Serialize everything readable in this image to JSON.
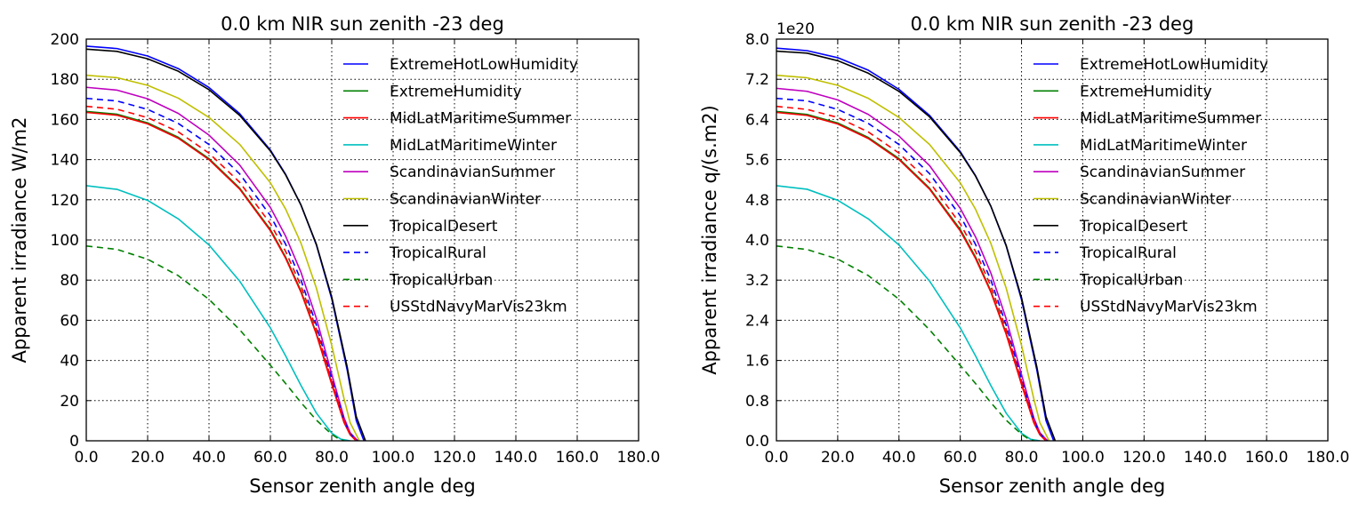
{
  "figure": {
    "panel_names": [
      "panel-irradiance",
      "panel-quanta"
    ]
  },
  "chart_data": [
    {
      "type": "line",
      "title": "0.0 km NIR sun zenith -23 deg",
      "xlabel": "Sensor zenith angle deg",
      "ylabel": "Apparent irradiance W/m2",
      "xlim": [
        0,
        180
      ],
      "ylim": [
        0,
        200
      ],
      "xticks": [
        "0.0",
        "20.0",
        "40.0",
        "60.0",
        "80.0",
        "100.0",
        "120.0",
        "140.0",
        "160.0",
        "180.0"
      ],
      "xtick_values": [
        0,
        20,
        40,
        60,
        80,
        100,
        120,
        140,
        160,
        180
      ],
      "yticks": [
        "0",
        "20",
        "40",
        "60",
        "80",
        "100",
        "120",
        "140",
        "160",
        "180",
        "200"
      ],
      "ytick_values": [
        0,
        20,
        40,
        60,
        80,
        100,
        120,
        140,
        160,
        180,
        200
      ],
      "offset_label": "",
      "grid": true,
      "legend_position": "upper right",
      "series": [
        {
          "name": "ExtremeHotLowHumidity",
          "color": "#0000ff",
          "dash": "solid",
          "y0": 196.5,
          "xend": 90.5,
          "x": [
            0,
            10,
            20,
            30,
            40,
            50,
            60,
            65,
            70,
            75,
            80,
            85,
            88,
            90.5
          ],
          "y": [
            196.5,
            195.3,
            191.6,
            185.3,
            175.9,
            162.9,
            144.8,
            132.6,
            117.3,
            97.5,
            70.7,
            35.5,
            10,
            0
          ]
        },
        {
          "name": "ExtremeHumidity",
          "color": "#008000",
          "dash": "solid",
          "y0": 164,
          "xend": 88,
          "x": [
            0,
            10,
            20,
            30,
            40,
            50,
            60,
            65,
            70,
            75,
            80,
            84,
            86,
            88
          ],
          "y": [
            164,
            162.6,
            158.3,
            151.1,
            140.5,
            125.8,
            105.2,
            91.4,
            74.5,
            53.5,
            28.5,
            9.3,
            3,
            0
          ]
        },
        {
          "name": "MidLatMaritimeSummer",
          "color": "#ff0000",
          "dash": "solid",
          "y0": 163.5,
          "xend": 88,
          "x": [
            0,
            10,
            20,
            30,
            40,
            50,
            60,
            65,
            70,
            75,
            80,
            84,
            86,
            88
          ],
          "y": [
            163.5,
            162.1,
            157.8,
            150.6,
            140,
            125.3,
            104.6,
            90.8,
            73.9,
            53,
            28.1,
            9.1,
            3,
            0
          ]
        },
        {
          "name": "MidLatMaritimeWinter",
          "color": "#00bfbf",
          "dash": "solid",
          "y0": 127,
          "xend": 86,
          "x": [
            0,
            10,
            20,
            30,
            40,
            50,
            60,
            65,
            70,
            75,
            80,
            83,
            86
          ],
          "y": [
            127,
            125.2,
            119.7,
            110.5,
            97.5,
            79.5,
            56.2,
            42.2,
            27.5,
            13.8,
            3.8,
            0.8,
            0
          ]
        },
        {
          "name": "ScandinavianSummer",
          "color": "#bf00bf",
          "dash": "solid",
          "y0": 176,
          "xend": 88.5,
          "x": [
            0,
            10,
            20,
            30,
            40,
            50,
            60,
            65,
            70,
            75,
            80,
            84,
            86,
            88.5
          ],
          "y": [
            176,
            174.6,
            170.3,
            163,
            152.2,
            137.3,
            116.2,
            101.8,
            83.8,
            60.9,
            33.2,
            11.5,
            4,
            0
          ]
        },
        {
          "name": "ScandinavianWinter",
          "color": "#bfbf00",
          "dash": "solid",
          "y0": 182,
          "xend": 89,
          "x": [
            0,
            10,
            20,
            30,
            40,
            50,
            60,
            65,
            70,
            75,
            80,
            84,
            86,
            89
          ],
          "y": [
            182,
            180.8,
            177,
            170.6,
            161,
            147.6,
            128.5,
            115.3,
            98.3,
            76,
            47.5,
            21,
            9,
            0
          ]
        },
        {
          "name": "TropicalDesert",
          "color": "#000000",
          "dash": "solid",
          "y0": 195,
          "xend": 91,
          "x": [
            0,
            10,
            20,
            30,
            40,
            50,
            60,
            65,
            70,
            75,
            80,
            85,
            88,
            91
          ],
          "y": [
            195,
            193.9,
            190.2,
            184,
            174.8,
            162,
            144.3,
            132.3,
            117.3,
            97.8,
            71.6,
            37,
            12,
            0
          ]
        },
        {
          "name": "TropicalRural",
          "color": "#0000ff",
          "dash": "dashed",
          "y0": 170.5,
          "xend": 88.5,
          "x": [
            0,
            10,
            20,
            30,
            40,
            50,
            60,
            65,
            70,
            75,
            80,
            84,
            86,
            88.5
          ],
          "y": [
            170.5,
            169.2,
            165,
            158,
            147.5,
            132.9,
            112.1,
            97.8,
            79.9,
            57.6,
            30.8,
            10.4,
            3.5,
            0
          ]
        },
        {
          "name": "TropicalUrban",
          "color": "#008000",
          "dash": "dashed",
          "y0": 97,
          "xend": 84,
          "x": [
            0,
            10,
            20,
            30,
            40,
            50,
            60,
            65,
            70,
            75,
            80,
            82,
            84
          ],
          "y": [
            97,
            95.3,
            90.4,
            82.2,
            70.4,
            55.3,
            37.6,
            28.5,
            19,
            10.3,
            3.2,
            1.2,
            0
          ]
        },
        {
          "name": "USStdNavyMarVis23km",
          "color": "#ff0000",
          "dash": "dashed",
          "y0": 166.5,
          "xend": 88,
          "x": [
            0,
            10,
            20,
            30,
            40,
            50,
            60,
            65,
            70,
            75,
            80,
            84,
            86,
            88
          ],
          "y": [
            166.5,
            165.1,
            160.9,
            153.8,
            143.2,
            128.7,
            108.1,
            94.2,
            77,
            55.6,
            29.6,
            9.8,
            3.2,
            0
          ]
        }
      ]
    },
    {
      "type": "line",
      "title": "0.0 km NIR sun zenith -23 deg",
      "xlabel": "Sensor zenith angle deg",
      "ylabel": "Apparent irradiance q/(s.m2)",
      "xlim": [
        0,
        180
      ],
      "ylim": [
        0,
        8.0
      ],
      "xticks": [
        "0.0",
        "20.0",
        "40.0",
        "60.0",
        "80.0",
        "100.0",
        "120.0",
        "140.0",
        "160.0",
        "180.0"
      ],
      "xtick_values": [
        0,
        20,
        40,
        60,
        80,
        100,
        120,
        140,
        160,
        180
      ],
      "yticks": [
        "0.0",
        "0.8",
        "1.6",
        "2.4",
        "3.2",
        "4.0",
        "4.8",
        "5.6",
        "6.4",
        "7.2",
        "8.0"
      ],
      "ytick_values": [
        0,
        0.8,
        1.6,
        2.4,
        3.2,
        4.0,
        4.8,
        5.6,
        6.4,
        7.2,
        8.0
      ],
      "offset_label": "1e20",
      "grid": true,
      "legend_position": "upper right",
      "series": [
        {
          "name": "ExtremeHotLowHumidity",
          "color": "#0000ff",
          "dash": "solid",
          "y0": 7.82,
          "xend": 90.5,
          "x": [
            0,
            10,
            20,
            30,
            40,
            50,
            60,
            65,
            70,
            75,
            80,
            85,
            88,
            90.5
          ],
          "y": [
            7.82,
            7.77,
            7.63,
            7.38,
            7.0,
            6.48,
            5.76,
            5.28,
            4.67,
            3.88,
            2.81,
            1.41,
            0.4,
            0
          ]
        },
        {
          "name": "ExtremeHumidity",
          "color": "#008000",
          "dash": "solid",
          "y0": 6.56,
          "xend": 88,
          "x": [
            0,
            10,
            20,
            30,
            40,
            50,
            60,
            65,
            70,
            75,
            80,
            84,
            86,
            88
          ],
          "y": [
            6.56,
            6.5,
            6.33,
            6.04,
            5.62,
            5.03,
            4.21,
            3.66,
            2.98,
            2.14,
            1.14,
            0.37,
            0.12,
            0
          ]
        },
        {
          "name": "MidLatMaritimeSummer",
          "color": "#ff0000",
          "dash": "solid",
          "y0": 6.54,
          "xend": 88,
          "x": [
            0,
            10,
            20,
            30,
            40,
            50,
            60,
            65,
            70,
            75,
            80,
            84,
            86,
            88
          ],
          "y": [
            6.54,
            6.48,
            6.31,
            6.02,
            5.6,
            5.01,
            4.18,
            3.63,
            2.96,
            2.12,
            1.12,
            0.36,
            0.12,
            0
          ]
        },
        {
          "name": "MidLatMaritimeWinter",
          "color": "#00bfbf",
          "dash": "solid",
          "y0": 5.08,
          "xend": 86,
          "x": [
            0,
            10,
            20,
            30,
            40,
            50,
            60,
            65,
            70,
            75,
            80,
            83,
            86
          ],
          "y": [
            5.08,
            5.01,
            4.79,
            4.42,
            3.9,
            3.18,
            2.25,
            1.69,
            1.1,
            0.55,
            0.15,
            0.03,
            0
          ]
        },
        {
          "name": "ScandinavianSummer",
          "color": "#bf00bf",
          "dash": "solid",
          "y0": 7.02,
          "xend": 88.5,
          "x": [
            0,
            10,
            20,
            30,
            40,
            50,
            60,
            65,
            70,
            75,
            80,
            84,
            86,
            88.5
          ],
          "y": [
            7.02,
            6.96,
            6.79,
            6.5,
            6.07,
            5.48,
            4.63,
            4.06,
            3.34,
            2.43,
            1.32,
            0.46,
            0.16,
            0
          ]
        },
        {
          "name": "ScandinavianWinter",
          "color": "#bfbf00",
          "dash": "solid",
          "y0": 7.28,
          "xend": 89,
          "x": [
            0,
            10,
            20,
            30,
            40,
            50,
            60,
            65,
            70,
            75,
            80,
            84,
            86,
            89
          ],
          "y": [
            7.28,
            7.23,
            7.08,
            6.82,
            6.44,
            5.9,
            5.14,
            4.61,
            3.93,
            3.04,
            1.9,
            0.84,
            0.36,
            0
          ]
        },
        {
          "name": "TropicalDesert",
          "color": "#000000",
          "dash": "solid",
          "y0": 7.76,
          "xend": 91,
          "x": [
            0,
            10,
            20,
            30,
            40,
            50,
            60,
            65,
            70,
            75,
            80,
            85,
            88,
            91
          ],
          "y": [
            7.76,
            7.72,
            7.57,
            7.32,
            6.96,
            6.45,
            5.74,
            5.27,
            4.67,
            3.89,
            2.85,
            1.47,
            0.48,
            0
          ]
        },
        {
          "name": "TropicalRural",
          "color": "#0000ff",
          "dash": "dashed",
          "y0": 6.82,
          "xend": 88.5,
          "x": [
            0,
            10,
            20,
            30,
            40,
            50,
            60,
            65,
            70,
            75,
            80,
            84,
            86,
            88.5
          ],
          "y": [
            6.82,
            6.77,
            6.6,
            6.32,
            5.9,
            5.32,
            4.48,
            3.91,
            3.2,
            2.3,
            1.23,
            0.42,
            0.14,
            0
          ]
        },
        {
          "name": "TropicalUrban",
          "color": "#008000",
          "dash": "dashed",
          "y0": 3.88,
          "xend": 84,
          "x": [
            0,
            10,
            20,
            30,
            40,
            50,
            60,
            65,
            70,
            75,
            80,
            82,
            84
          ],
          "y": [
            3.88,
            3.81,
            3.62,
            3.29,
            2.82,
            2.21,
            1.5,
            1.14,
            0.76,
            0.41,
            0.13,
            0.05,
            0
          ]
        },
        {
          "name": "USStdNavyMarVis23km",
          "color": "#ff0000",
          "dash": "dashed",
          "y0": 6.66,
          "xend": 88,
          "x": [
            0,
            10,
            20,
            30,
            40,
            50,
            60,
            65,
            70,
            75,
            80,
            84,
            86,
            88
          ],
          "y": [
            6.66,
            6.6,
            6.44,
            6.15,
            5.73,
            5.15,
            4.32,
            3.77,
            3.08,
            2.22,
            1.18,
            0.39,
            0.13,
            0
          ]
        }
      ]
    }
  ]
}
